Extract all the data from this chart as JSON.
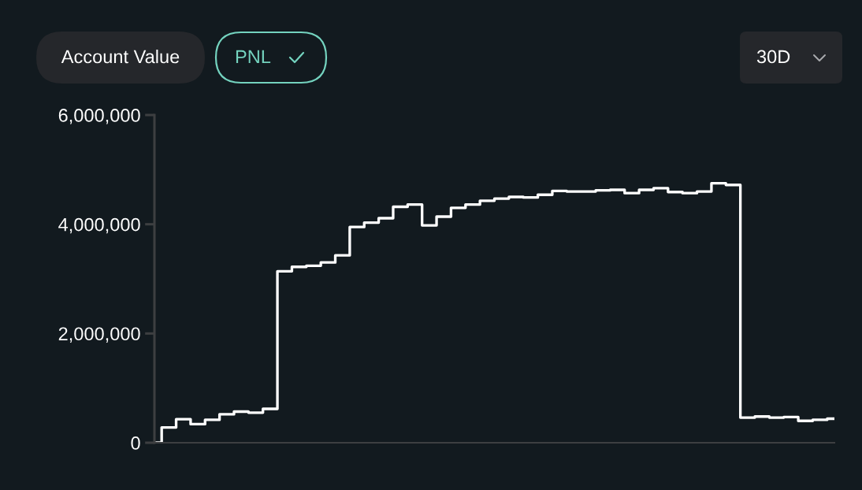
{
  "chart_data": {
    "type": "step",
    "categories": [
      null,
      null,
      null,
      null,
      null,
      null,
      null,
      null,
      null,
      null,
      null,
      null,
      null,
      null,
      null,
      null,
      null,
      null,
      null,
      null,
      null,
      null,
      null,
      null,
      null,
      null,
      null,
      null,
      null,
      null,
      null,
      null,
      null,
      null,
      null,
      null,
      null,
      null,
      null,
      null,
      null,
      null,
      null,
      null,
      null,
      null,
      null,
      null
    ],
    "series": [
      {
        "color": "#ffffff",
        "values": [
          0,
          280000,
          430000,
          340000,
          420000,
          520000,
          570000,
          550000,
          620000,
          3140000,
          3220000,
          3240000,
          3300000,
          3430000,
          3950000,
          4030000,
          4110000,
          4320000,
          4360000,
          3980000,
          4140000,
          4300000,
          4360000,
          4430000,
          4470000,
          4500000,
          4490000,
          4540000,
          4610000,
          4600000,
          4600000,
          4620000,
          4630000,
          4570000,
          4630000,
          4660000,
          4590000,
          4570000,
          4600000,
          4750000,
          4720000,
          460000,
          480000,
          460000,
          470000,
          400000,
          420000,
          440000
        ]
      }
    ],
    "ylim": [
      0,
      6000000
    ],
    "yticks": [
      0,
      {
        "value": 2000000,
        "label": "2,000,000"
      },
      {
        "value": 4000000,
        "label": "4,000,000"
      },
      {
        "value": 6000000,
        "label": "6,000,000"
      }
    ],
    "annotations": [
      "Account Value",
      "PNL",
      "30D"
    ]
  }
}
